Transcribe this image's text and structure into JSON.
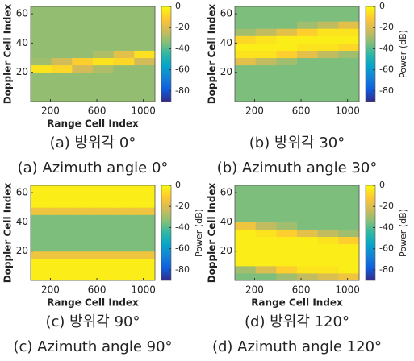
{
  "chart_data": [
    {
      "type": "heatmap",
      "xlabel": "Range Cell Index",
      "ylabel": "Doppler Cell Index",
      "captions": [
        "(a) 방위각 0°",
        "(a) Azimuth angle 0°"
      ],
      "xlim": [
        30,
        1100
      ],
      "xticks": [
        200,
        600,
        1000
      ],
      "ylim": [
        0,
        65
      ],
      "yticks": [
        20,
        40,
        60
      ],
      "clim": [
        -90,
        0
      ],
      "cticks": [
        0,
        -20,
        -40,
        -60,
        -80
      ],
      "colormap": [
        "#352a87",
        "#0f5cdd",
        "#1481d6",
        "#06a4ca",
        "#2eb7a4",
        "#87bf77",
        "#d1bb59",
        "#fec832",
        "#f9fb0e"
      ],
      "z": [
        [
          -32,
          -32,
          -32,
          -32,
          -32,
          -32
        ],
        [
          -32,
          -32,
          -32,
          -32,
          -32,
          -32
        ],
        [
          -32,
          -32,
          -32,
          -32,
          -32,
          -32
        ],
        [
          -32,
          -32,
          -32,
          -32,
          -32,
          -32
        ],
        [
          -5,
          -8,
          -22,
          -28,
          -32,
          -32
        ],
        [
          -30,
          -22,
          -10,
          -5,
          -8,
          -22
        ],
        [
          -32,
          -32,
          -32,
          -28,
          -18,
          -6
        ],
        [
          -32,
          -32,
          -32,
          -32,
          -32,
          -32
        ],
        [
          -32,
          -32,
          -32,
          -32,
          -32,
          -32
        ],
        [
          -32,
          -32,
          -32,
          -32,
          -32,
          -32
        ],
        [
          -32,
          -32,
          -32,
          -32,
          -32,
          -32
        ],
        [
          -32,
          -32,
          -32,
          -32,
          -32,
          -32
        ],
        [
          -32,
          -32,
          -32,
          -32,
          -32,
          -32
        ]
      ]
    },
    {
      "type": "heatmap",
      "ylabel": "Doppler Cell Index",
      "captions": [
        "(b) 방위각 30°",
        "(b) Azimuth angle 30°"
      ],
      "colorbar_label": "Power (dB)",
      "xlim": [
        30,
        1100
      ],
      "xticks": [
        200,
        600,
        1000
      ],
      "ylim": [
        0,
        65
      ],
      "yticks": [
        20,
        40,
        60
      ],
      "clim": [
        -90,
        0
      ],
      "cticks": [
        0,
        -20,
        -40,
        -60,
        -80
      ],
      "colormap": [
        "#352a87",
        "#0f5cdd",
        "#1481d6",
        "#06a4ca",
        "#2eb7a4",
        "#87bf77",
        "#d1bb59",
        "#fec832",
        "#f9fb0e"
      ],
      "z": [
        [
          -35,
          -35,
          -35,
          -35,
          -35,
          -35
        ],
        [
          -35,
          -35,
          -35,
          -35,
          -35,
          -35
        ],
        [
          -35,
          -35,
          -35,
          -35,
          -35,
          -35
        ],
        [
          -35,
          -35,
          -35,
          -35,
          -35,
          -35
        ],
        [
          -35,
          -35,
          -35,
          -35,
          -35,
          -35
        ],
        [
          -18,
          -25,
          -30,
          -35,
          -35,
          -35
        ],
        [
          -5,
          -5,
          -10,
          -18,
          -25,
          -30
        ],
        [
          -3,
          -3,
          -3,
          -5,
          -5,
          -8
        ],
        [
          -8,
          -5,
          -3,
          -3,
          -3,
          -3
        ],
        [
          -30,
          -25,
          -18,
          -10,
          -5,
          -5
        ],
        [
          -35,
          -35,
          -35,
          -30,
          -25,
          -18
        ],
        [
          -35,
          -35,
          -35,
          -35,
          -35,
          -35
        ],
        [
          -35,
          -35,
          -35,
          -35,
          -35,
          -35
        ]
      ]
    },
    {
      "type": "heatmap",
      "xlabel": "Range Cell Index",
      "ylabel": "Doppler Cell Index",
      "captions": [
        "(c) 방위각 90°",
        "(c) Azimuth angle 90°"
      ],
      "colorbar_label": "Power (dB)",
      "xlim": [
        30,
        1100
      ],
      "xticks": [
        200,
        600,
        1000
      ],
      "ylim": [
        0,
        65
      ],
      "yticks": [
        20,
        40,
        60
      ],
      "clim": [
        -90,
        0
      ],
      "cticks": [
        0,
        -20,
        -40,
        -60,
        -80
      ],
      "colormap": [
        "#352a87",
        "#0f5cdd",
        "#1481d6",
        "#06a4ca",
        "#2eb7a4",
        "#87bf77",
        "#d1bb59",
        "#fec832",
        "#f9fb0e"
      ],
      "z": [
        [
          -3,
          -3,
          -3,
          -3,
          -3,
          -3
        ],
        [
          -3,
          -3,
          -3,
          -3,
          -3,
          -3
        ],
        [
          -3,
          -3,
          -3,
          -3,
          -3,
          -3
        ],
        [
          -15,
          -15,
          -15,
          -15,
          -15,
          -15
        ],
        [
          -35,
          -35,
          -35,
          -35,
          -35,
          -35
        ],
        [
          -35,
          -35,
          -35,
          -35,
          -35,
          -35
        ],
        [
          -35,
          -35,
          -35,
          -35,
          -35,
          -35
        ],
        [
          -35,
          -35,
          -35,
          -35,
          -35,
          -35
        ],
        [
          -35,
          -35,
          -35,
          -35,
          -35,
          -35
        ],
        [
          -15,
          -15,
          -15,
          -15,
          -15,
          -15
        ],
        [
          -3,
          -3,
          -3,
          -3,
          -3,
          -3
        ],
        [
          -3,
          -3,
          -3,
          -3,
          -3,
          -3
        ],
        [
          -3,
          -3,
          -3,
          -3,
          -3,
          -3
        ]
      ]
    },
    {
      "type": "heatmap",
      "xlabel": "Range Cell Index",
      "ylabel": "Doppler Cell Index",
      "captions": [
        "(d) 방위각 120°",
        "(d) Azimuth angle 120°"
      ],
      "colorbar_label": "Power (dB)",
      "xlim": [
        30,
        1100
      ],
      "xticks": [
        200,
        600,
        1000
      ],
      "ylim": [
        0,
        65
      ],
      "yticks": [
        20,
        40,
        60
      ],
      "clim": [
        -90,
        0
      ],
      "cticks": [
        0,
        -20,
        -40,
        -60,
        -80
      ],
      "colormap": [
        "#352a87",
        "#0f5cdd",
        "#1481d6",
        "#06a4ca",
        "#2eb7a4",
        "#87bf77",
        "#d1bb59",
        "#fec832",
        "#f9fb0e"
      ],
      "z": [
        [
          -35,
          -35,
          -30,
          -25,
          -20,
          -15
        ],
        [
          -30,
          -20,
          -10,
          -5,
          -5,
          -3
        ],
        [
          -3,
          -3,
          -3,
          -3,
          -3,
          -3
        ],
        [
          -3,
          -3,
          -3,
          -3,
          -3,
          -3
        ],
        [
          -3,
          -3,
          -3,
          -3,
          -3,
          -3
        ],
        [
          -3,
          -3,
          -3,
          -3,
          -5,
          -10
        ],
        [
          -3,
          -5,
          -10,
          -18,
          -25,
          -30
        ],
        [
          -15,
          -25,
          -30,
          -35,
          -35,
          -35
        ],
        [
          -35,
          -35,
          -35,
          -35,
          -35,
          -35
        ],
        [
          -35,
          -35,
          -35,
          -35,
          -35,
          -35
        ],
        [
          -35,
          -35,
          -35,
          -35,
          -35,
          -35
        ],
        [
          -35,
          -35,
          -35,
          -35,
          -35,
          -35
        ],
        [
          -35,
          -35,
          -35,
          -35,
          -35,
          -35
        ]
      ]
    }
  ]
}
